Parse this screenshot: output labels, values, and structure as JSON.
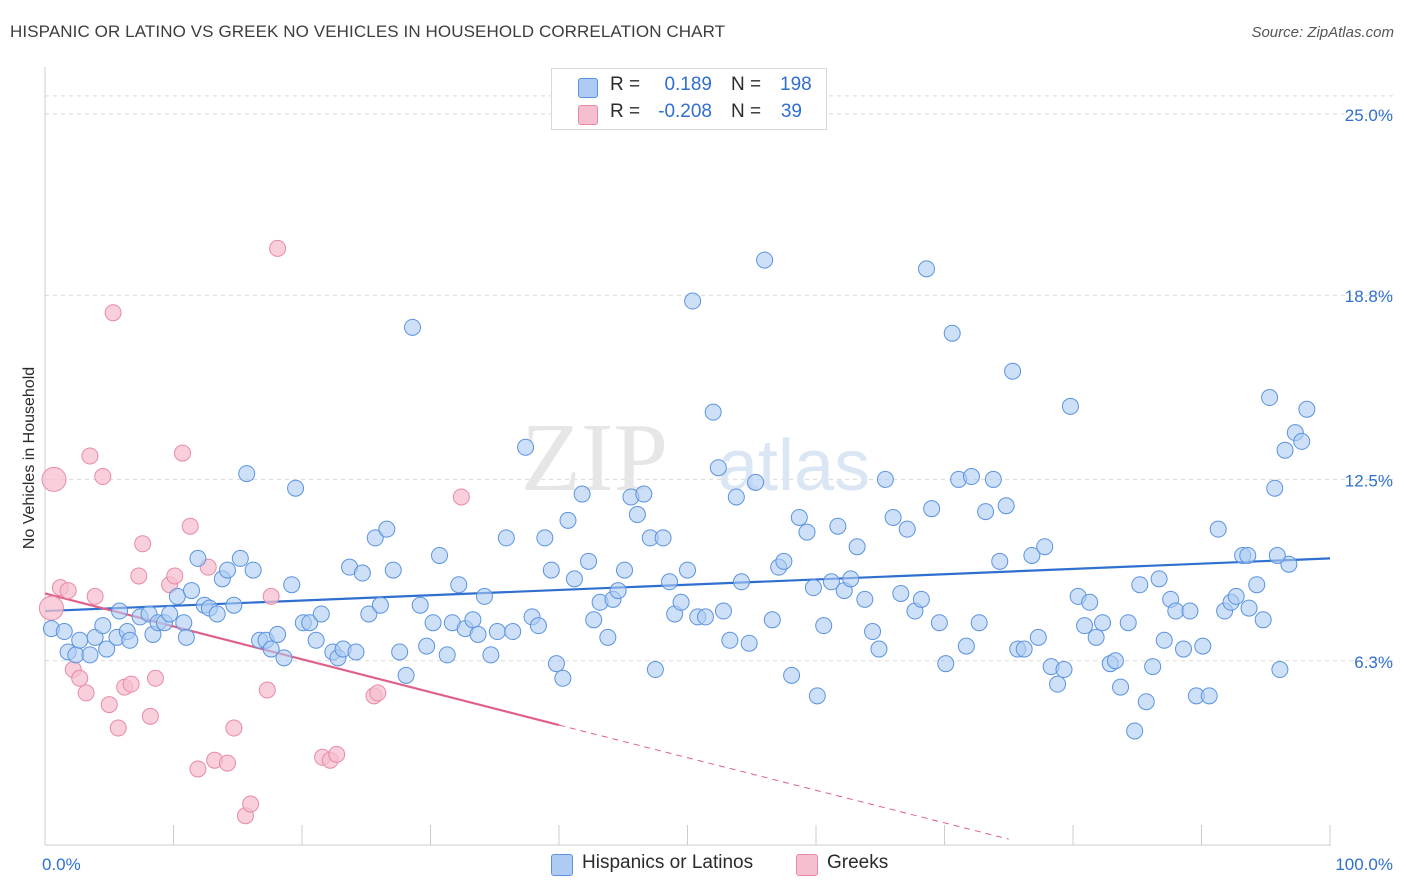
{
  "title": "HISPANIC OR LATINO VS GREEK NO VEHICLES IN HOUSEHOLD CORRELATION CHART",
  "source": "Source: ZipAtlas.com",
  "watermark": {
    "part1": "ZIP",
    "part2": "atlas"
  },
  "stats": [
    {
      "r_label": "R =",
      "r_value": "0.189",
      "n_label": "N =",
      "n_value": "198"
    },
    {
      "r_label": "R =",
      "r_value": "-0.208",
      "n_label": "N =",
      "n_value": "39"
    }
  ],
  "colors": {
    "blue_fill": "#aecbf3",
    "blue_stroke": "#5b93e0",
    "blue_line": "#2f6fcf",
    "pink_fill": "#f6bfcf",
    "pink_stroke": "#e98aa5",
    "pink_line": "#e0608a",
    "axis_label": "#2f6fcf",
    "grid": "#d9d9d9"
  },
  "chart_data": {
    "type": "scatter",
    "title": "HISPANIC OR LATINO VS GREEK NO VEHICLES IN HOUSEHOLD CORRELATION CHART",
    "xlabel": "",
    "ylabel": "No Vehicles in Household",
    "xlim": [
      0,
      100
    ],
    "ylim": [
      0,
      26.5
    ],
    "x_tick_labels": [
      "0.0%",
      "100.0%"
    ],
    "y_ticks": [
      6.3,
      12.5,
      18.8,
      25.0
    ],
    "y_tick_labels": [
      "6.3%",
      "12.5%",
      "18.8%",
      "25.0%"
    ],
    "grid": true,
    "legend_position": "bottom",
    "series": [
      {
        "name": "Hispanics or Latinos",
        "color": "#5b93e0",
        "trend": {
          "x": [
            0,
            100
          ],
          "y": [
            8.0,
            9.8
          ]
        },
        "points": [
          [
            0.5,
            7.4
          ],
          [
            1.5,
            7.3
          ],
          [
            1.8,
            6.6
          ],
          [
            2.4,
            6.5
          ],
          [
            2.7,
            7.0
          ],
          [
            3.5,
            6.5
          ],
          [
            3.9,
            7.1
          ],
          [
            4.5,
            7.5
          ],
          [
            4.8,
            6.7
          ],
          [
            5.6,
            7.1
          ],
          [
            5.8,
            8.0
          ],
          [
            6.4,
            7.3
          ],
          [
            6.6,
            7.0
          ],
          [
            7.4,
            7.8
          ],
          [
            8.1,
            7.9
          ],
          [
            8.4,
            7.2
          ],
          [
            8.8,
            7.6
          ],
          [
            9.3,
            7.6
          ],
          [
            9.7,
            7.9
          ],
          [
            10.3,
            8.5
          ],
          [
            10.8,
            7.6
          ],
          [
            11.0,
            7.1
          ],
          [
            11.4,
            8.7
          ],
          [
            11.9,
            9.8
          ],
          [
            12.4,
            8.2
          ],
          [
            12.8,
            8.1
          ],
          [
            13.4,
            7.9
          ],
          [
            13.8,
            9.1
          ],
          [
            14.2,
            9.4
          ],
          [
            14.7,
            8.2
          ],
          [
            15.2,
            9.8
          ],
          [
            15.7,
            12.7
          ],
          [
            16.2,
            9.4
          ],
          [
            16.7,
            7.0
          ],
          [
            17.2,
            7.0
          ],
          [
            17.6,
            6.7
          ],
          [
            18.1,
            7.2
          ],
          [
            18.6,
            6.4
          ],
          [
            19.2,
            8.9
          ],
          [
            19.5,
            12.2
          ],
          [
            20.1,
            7.6
          ],
          [
            20.6,
            7.6
          ],
          [
            21.1,
            7.0
          ],
          [
            21.5,
            7.9
          ],
          [
            22.4,
            6.6
          ],
          [
            22.8,
            6.4
          ],
          [
            23.2,
            6.7
          ],
          [
            23.7,
            9.5
          ],
          [
            24.2,
            6.6
          ],
          [
            24.7,
            9.3
          ],
          [
            25.2,
            7.9
          ],
          [
            25.7,
            10.5
          ],
          [
            26.1,
            8.2
          ],
          [
            26.6,
            10.8
          ],
          [
            27.1,
            9.4
          ],
          [
            27.6,
            6.6
          ],
          [
            28.1,
            5.8
          ],
          [
            28.6,
            17.7
          ],
          [
            29.2,
            8.2
          ],
          [
            29.7,
            6.8
          ],
          [
            30.2,
            7.6
          ],
          [
            30.7,
            9.9
          ],
          [
            31.3,
            6.5
          ],
          [
            31.7,
            7.6
          ],
          [
            32.2,
            8.9
          ],
          [
            32.7,
            7.4
          ],
          [
            33.3,
            7.7
          ],
          [
            33.7,
            7.2
          ],
          [
            34.2,
            8.5
          ],
          [
            34.7,
            6.5
          ],
          [
            35.2,
            7.3
          ],
          [
            35.9,
            10.5
          ],
          [
            36.4,
            7.3
          ],
          [
            37.4,
            13.6
          ],
          [
            37.9,
            7.8
          ],
          [
            38.4,
            7.5
          ],
          [
            38.9,
            10.5
          ],
          [
            39.4,
            9.4
          ],
          [
            39.8,
            6.2
          ],
          [
            40.3,
            5.7
          ],
          [
            40.7,
            11.1
          ],
          [
            41.2,
            9.1
          ],
          [
            41.8,
            12.0
          ],
          [
            42.3,
            9.7
          ],
          [
            42.7,
            7.7
          ],
          [
            43.2,
            8.3
          ],
          [
            43.8,
            7.1
          ],
          [
            44.2,
            8.4
          ],
          [
            44.6,
            8.7
          ],
          [
            45.1,
            9.4
          ],
          [
            45.6,
            11.9
          ],
          [
            46.1,
            11.3
          ],
          [
            46.6,
            12.0
          ],
          [
            47.1,
            10.5
          ],
          [
            47.5,
            6.0
          ],
          [
            48.1,
            10.5
          ],
          [
            48.6,
            9.0
          ],
          [
            49.0,
            7.9
          ],
          [
            49.5,
            8.3
          ],
          [
            50.0,
            9.4
          ],
          [
            50.4,
            18.6
          ],
          [
            50.8,
            7.8
          ],
          [
            51.4,
            7.8
          ],
          [
            52.0,
            14.8
          ],
          [
            52.4,
            12.9
          ],
          [
            52.8,
            8.0
          ],
          [
            53.3,
            7.0
          ],
          [
            53.8,
            11.9
          ],
          [
            54.2,
            9.0
          ],
          [
            54.8,
            6.9
          ],
          [
            55.3,
            12.4
          ],
          [
            56.0,
            20.0
          ],
          [
            56.6,
            7.7
          ],
          [
            57.1,
            9.5
          ],
          [
            57.5,
            9.7
          ],
          [
            58.1,
            5.8
          ],
          [
            58.7,
            11.2
          ],
          [
            59.3,
            10.7
          ],
          [
            59.8,
            8.8
          ],
          [
            60.1,
            5.1
          ],
          [
            60.6,
            7.5
          ],
          [
            61.2,
            9.0
          ],
          [
            61.7,
            10.9
          ],
          [
            62.2,
            8.7
          ],
          [
            62.7,
            9.1
          ],
          [
            63.2,
            10.2
          ],
          [
            63.8,
            8.4
          ],
          [
            64.4,
            7.3
          ],
          [
            64.9,
            6.7
          ],
          [
            65.4,
            12.5
          ],
          [
            66.0,
            11.2
          ],
          [
            66.6,
            8.6
          ],
          [
            67.1,
            10.8
          ],
          [
            67.7,
            8.0
          ],
          [
            68.2,
            8.4
          ],
          [
            68.6,
            19.7
          ],
          [
            69.0,
            11.5
          ],
          [
            69.6,
            7.6
          ],
          [
            70.1,
            6.2
          ],
          [
            70.6,
            17.5
          ],
          [
            71.1,
            12.5
          ],
          [
            71.7,
            6.8
          ],
          [
            72.1,
            12.6
          ],
          [
            72.7,
            7.6
          ],
          [
            73.2,
            11.4
          ],
          [
            73.8,
            12.5
          ],
          [
            74.3,
            9.7
          ],
          [
            74.8,
            11.6
          ],
          [
            75.3,
            16.2
          ],
          [
            75.7,
            6.7
          ],
          [
            76.2,
            6.7
          ],
          [
            76.8,
            9.9
          ],
          [
            77.3,
            7.1
          ],
          [
            77.8,
            10.2
          ],
          [
            78.3,
            6.1
          ],
          [
            78.8,
            5.5
          ],
          [
            79.3,
            6.0
          ],
          [
            79.8,
            15.0
          ],
          [
            80.4,
            8.5
          ],
          [
            80.9,
            7.5
          ],
          [
            81.3,
            8.3
          ],
          [
            81.8,
            7.1
          ],
          [
            82.3,
            7.6
          ],
          [
            82.9,
            6.2
          ],
          [
            83.3,
            6.3
          ],
          [
            83.7,
            5.4
          ],
          [
            84.3,
            7.6
          ],
          [
            84.8,
            3.9
          ],
          [
            85.2,
            8.9
          ],
          [
            85.7,
            4.9
          ],
          [
            86.2,
            6.1
          ],
          [
            86.7,
            9.1
          ],
          [
            87.1,
            7.0
          ],
          [
            87.6,
            8.4
          ],
          [
            88.0,
            8.0
          ],
          [
            88.6,
            6.7
          ],
          [
            89.1,
            8.0
          ],
          [
            89.6,
            5.1
          ],
          [
            90.1,
            6.8
          ],
          [
            90.6,
            5.1
          ],
          [
            91.3,
            10.8
          ],
          [
            91.8,
            8.0
          ],
          [
            92.3,
            8.3
          ],
          [
            92.7,
            8.5
          ],
          [
            93.2,
            9.9
          ],
          [
            93.7,
            8.1
          ],
          [
            94.3,
            8.9
          ],
          [
            94.8,
            7.7
          ],
          [
            95.3,
            15.3
          ],
          [
            95.7,
            12.2
          ],
          [
            96.1,
            6.0
          ],
          [
            96.5,
            13.5
          ],
          [
            96.8,
            9.6
          ],
          [
            97.3,
            14.1
          ],
          [
            97.8,
            13.8
          ],
          [
            98.2,
            14.9
          ],
          [
            95.9,
            9.9
          ],
          [
            93.6,
            9.9
          ]
        ]
      },
      {
        "name": "Greeks",
        "color": "#e98aa5",
        "trend": {
          "x": [
            0,
            40
          ],
          "y": [
            8.6,
            4.1
          ]
        },
        "trend_extension": {
          "x": [
            40,
            75
          ],
          "y": [
            4.1,
            0.2
          ]
        },
        "points": [
          [
            0.5,
            8.1
          ],
          [
            0.7,
            12.5
          ],
          [
            1.2,
            8.8
          ],
          [
            1.8,
            8.7
          ],
          [
            2.2,
            6.0
          ],
          [
            2.7,
            5.7
          ],
          [
            3.2,
            5.2
          ],
          [
            3.5,
            13.3
          ],
          [
            3.9,
            8.5
          ],
          [
            4.5,
            12.6
          ],
          [
            5.0,
            4.8
          ],
          [
            5.3,
            18.2
          ],
          [
            5.7,
            4.0
          ],
          [
            6.2,
            5.4
          ],
          [
            6.7,
            5.5
          ],
          [
            7.3,
            9.2
          ],
          [
            7.6,
            10.3
          ],
          [
            8.2,
            4.4
          ],
          [
            8.6,
            5.7
          ],
          [
            9.7,
            8.9
          ],
          [
            10.1,
            9.2
          ],
          [
            10.7,
            13.4
          ],
          [
            11.3,
            10.9
          ],
          [
            11.9,
            2.6
          ],
          [
            12.7,
            9.5
          ],
          [
            13.2,
            2.9
          ],
          [
            14.2,
            2.8
          ],
          [
            14.7,
            4.0
          ],
          [
            15.6,
            1.0
          ],
          [
            16.0,
            1.4
          ],
          [
            17.3,
            5.3
          ],
          [
            17.6,
            8.5
          ],
          [
            18.1,
            20.4
          ],
          [
            21.6,
            3.0
          ],
          [
            22.2,
            2.9
          ],
          [
            22.7,
            3.1
          ],
          [
            25.6,
            5.1
          ],
          [
            25.9,
            5.2
          ],
          [
            32.4,
            11.9
          ]
        ]
      }
    ]
  },
  "legend": {
    "items": [
      {
        "label": "Hispanics or Latinos"
      },
      {
        "label": "Greeks"
      }
    ]
  }
}
